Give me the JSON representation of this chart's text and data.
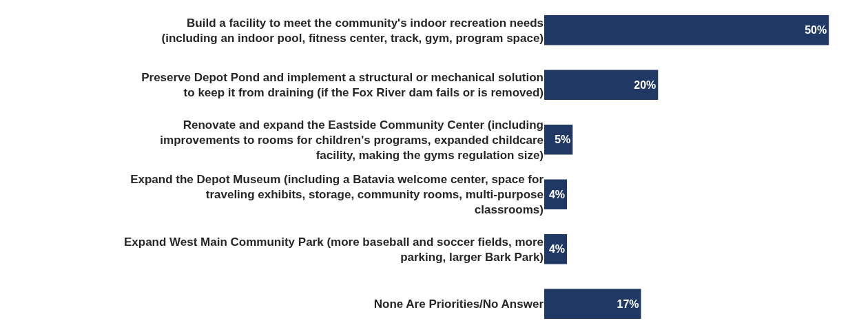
{
  "chart_data": {
    "type": "bar",
    "orientation": "horizontal",
    "categories": [
      "Build a facility to meet the community's indoor recreation needs (including an indoor pool, fitness center, track, gym, program space)",
      "Preserve Depot Pond and implement a structural or mechanical solution to keep it from draining (if the Fox River dam fails or is removed)",
      "Renovate and expand the Eastside Community Center (including improvements to rooms for children's programs, expanded childcare facility, making the gyms regulation size)",
      "Expand the Depot Museum (including a Batavia welcome center, space for traveling exhibits, storage, community rooms, multi-purpose classrooms)",
      "Expand West Main Community Park (more baseball and soccer fields, more parking, larger Bark Park)",
      "None Are Priorities/No Answer"
    ],
    "values": [
      50,
      20,
      5,
      4,
      4,
      17
    ],
    "color": "#1f3864",
    "data_labels": true,
    "value_labels": [
      "50%",
      "20%",
      "5%",
      "4%",
      "4%",
      "17%"
    ]
  }
}
